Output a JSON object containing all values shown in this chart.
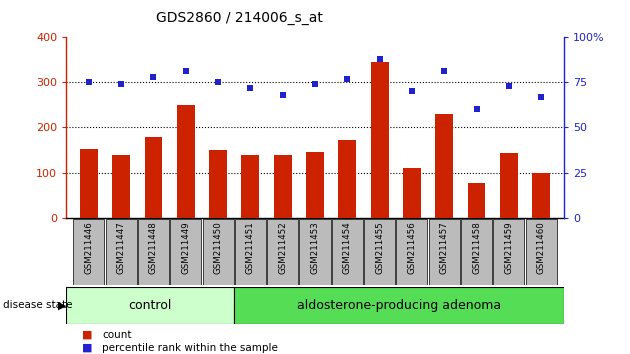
{
  "title": "GDS2860 / 214006_s_at",
  "categories": [
    "GSM211446",
    "GSM211447",
    "GSM211448",
    "GSM211449",
    "GSM211450",
    "GSM211451",
    "GSM211452",
    "GSM211453",
    "GSM211454",
    "GSM211455",
    "GSM211456",
    "GSM211457",
    "GSM211458",
    "GSM211459",
    "GSM211460"
  ],
  "counts": [
    152,
    138,
    178,
    250,
    150,
    138,
    140,
    145,
    172,
    345,
    110,
    230,
    76,
    143,
    98
  ],
  "percentiles": [
    75,
    74,
    78,
    81,
    75,
    72,
    68,
    74,
    77,
    88,
    70,
    81,
    60,
    73,
    67
  ],
  "bar_color": "#cc2200",
  "dot_color": "#2222cc",
  "n_control": 5,
  "n_adenoma": 10,
  "control_label": "control",
  "adenoma_label": "aldosterone-producing adenoma",
  "disease_state_label": "disease state",
  "legend_count_label": "count",
  "legend_percentile_label": "percentile rank within the sample",
  "ylim_left": [
    0,
    400
  ],
  "ylim_right": [
    0,
    100
  ],
  "yticks_left": [
    0,
    100,
    200,
    300,
    400
  ],
  "yticks_right": [
    0,
    25,
    50,
    75,
    100
  ],
  "ytick_labels_right": [
    "0",
    "25",
    "50",
    "75",
    "100%"
  ],
  "control_color": "#ccffcc",
  "adenoma_color": "#55dd55",
  "tick_bg_color": "#bbbbbb",
  "bar_width": 0.55
}
